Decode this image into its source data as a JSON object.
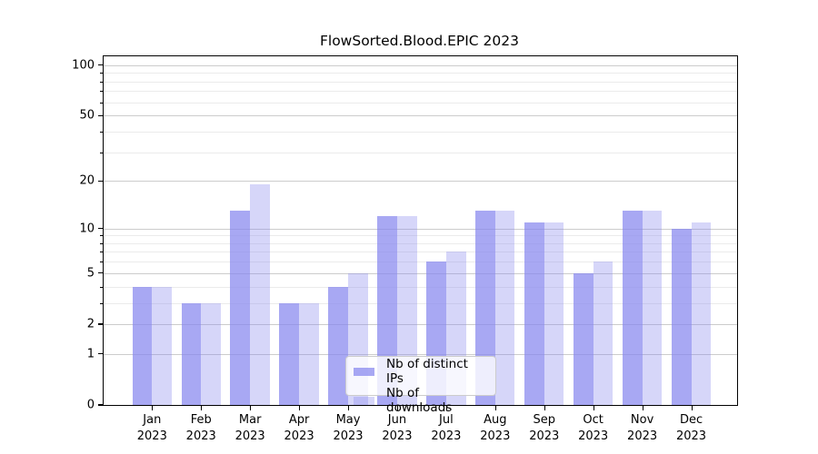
{
  "title": "FlowSorted.Blood.EPIC 2023",
  "chart_data": {
    "type": "bar",
    "title": "FlowSorted.Blood.EPIC 2023",
    "categories": [
      "Jan",
      "Feb",
      "Mar",
      "Apr",
      "May",
      "Jun",
      "Jul",
      "Aug",
      "Sep",
      "Oct",
      "Nov",
      "Dec"
    ],
    "category_year": "2023",
    "series": [
      {
        "name": "Nb of distinct IPs",
        "key": "ips",
        "values": [
          4,
          3,
          13,
          3,
          4,
          12,
          6,
          13,
          11,
          5,
          13,
          10
        ],
        "color": "rgba(136,136,238,0.73)"
      },
      {
        "name": "Nb of downloads",
        "key": "downloads",
        "values": [
          4,
          3,
          19,
          3,
          5,
          12,
          7,
          13,
          11,
          6,
          13,
          11
        ],
        "color": "rgba(136,136,238,0.34)"
      }
    ],
    "yscale": "log1p",
    "ylim": [
      0,
      113
    ],
    "yticks": [
      0,
      1,
      2,
      5,
      10,
      20,
      50,
      100
    ],
    "yticks_minor": [
      3,
      4,
      6,
      7,
      8,
      9,
      30,
      40,
      60,
      70,
      80,
      90
    ],
    "grid": "horizontal",
    "legend_position": "lower-center",
    "xlabel": "",
    "ylabel": ""
  },
  "legend": {
    "items": [
      {
        "label": "Nb of distinct IPs"
      },
      {
        "label": "Nb of downloads"
      }
    ]
  },
  "colors": {
    "bar_base": "#8888ee",
    "major_grid": "#cccccc",
    "minor_grid": "#ebebeb",
    "spine": "#000000",
    "text": "#000000",
    "legend_border": "#cccccc"
  }
}
